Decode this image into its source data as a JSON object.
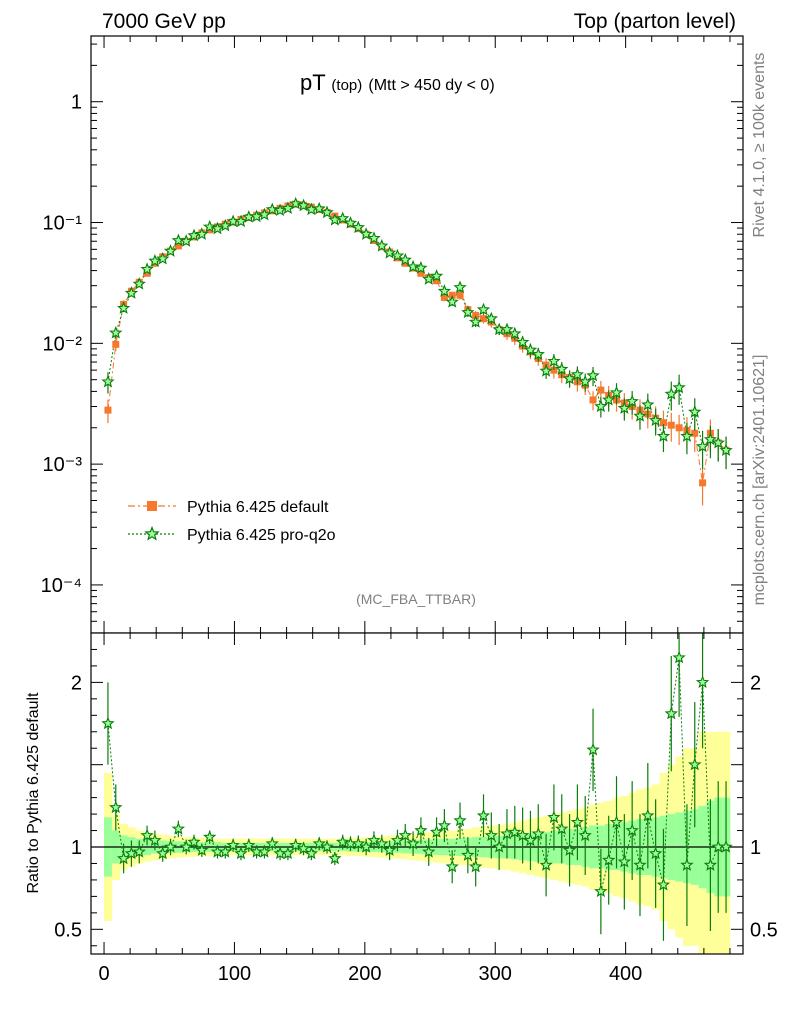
{
  "header": {
    "left": "7000 GeV pp",
    "right": "Top (parton level)"
  },
  "side_text": {
    "rivet": "Rivet 4.1.0, ≥ 100k events",
    "mcplots": "mcplots.cern.ch [arXiv:2401.10621]"
  },
  "analysis_tag": "(MC_FBA_TTBAR)",
  "colors": {
    "default": "#f5782d",
    "proq2o": "#0a7d0a",
    "band_inner": "#99ff99",
    "band_outer": "#ffff99"
  },
  "chart_data": [
    {
      "type": "scatter",
      "panel": "main",
      "title": "pT (top) (Mtt > 450 dy < 0)",
      "title_main": "pT",
      "title_small": "(top)",
      "title_rest": "(Mtt > 450 dy < 0)",
      "yscale": "log",
      "ylim": [
        4e-05,
        3.5
      ],
      "xlim": [
        -10,
        490
      ],
      "y_ticks": [
        {
          "value": 1,
          "label": "1"
        },
        {
          "value": 0.1,
          "label": "10⁻¹"
        },
        {
          "value": 0.01,
          "label": "10⁻²"
        },
        {
          "value": 0.001,
          "label": "10⁻³"
        },
        {
          "value": 0.0001,
          "label": "10⁻⁴"
        }
      ],
      "legend": {
        "position": "lower-left",
        "entries": [
          {
            "name": "Pythia 6.425 default",
            "marker": "square",
            "style": "dash-dot"
          },
          {
            "name": "Pythia 6.425 pro-q2o",
            "marker": "star",
            "style": "dotted"
          }
        ]
      },
      "series": [
        {
          "name": "Pythia 6.425 default",
          "x": [
            3,
            9,
            15,
            21,
            27,
            33,
            39,
            45,
            51,
            57,
            63,
            69,
            75,
            81,
            87,
            93,
            99,
            105,
            111,
            117,
            123,
            129,
            135,
            141,
            147,
            153,
            159,
            165,
            171,
            177,
            183,
            189,
            195,
            201,
            207,
            213,
            219,
            225,
            231,
            237,
            243,
            249,
            255,
            261,
            267,
            273,
            279,
            285,
            291,
            297,
            303,
            309,
            315,
            321,
            327,
            333,
            339,
            345,
            351,
            357,
            363,
            369,
            375,
            381,
            387,
            393,
            399,
            405,
            411,
            417,
            423,
            429,
            435,
            441,
            447,
            453,
            459,
            465,
            471,
            477
          ],
          "y": [
            0.0028,
            0.0098,
            0.021,
            0.027,
            0.032,
            0.038,
            0.046,
            0.052,
            0.058,
            0.064,
            0.07,
            0.076,
            0.082,
            0.087,
            0.092,
            0.097,
            0.101,
            0.106,
            0.11,
            0.115,
            0.12,
            0.125,
            0.131,
            0.137,
            0.142,
            0.139,
            0.134,
            0.128,
            0.121,
            0.113,
            0.105,
            0.097,
            0.089,
            0.08,
            0.071,
            0.063,
            0.057,
            0.051,
            0.046,
            0.042,
            0.038,
            0.035,
            0.033,
            0.024,
            0.025,
            0.025,
            0.019,
            0.017,
            0.016,
            0.015,
            0.013,
            0.012,
            0.011,
            0.0095,
            0.0085,
            0.0075,
            0.0066,
            0.006,
            0.0055,
            0.0052,
            0.0048,
            0.0045,
            0.0034,
            0.0041,
            0.0037,
            0.0034,
            0.0032,
            0.003,
            0.0028,
            0.0026,
            0.0024,
            0.0022,
            0.0021,
            0.002,
            0.0019,
            0.0018,
            0.0007,
            0.0018,
            0.0015,
            0.0013
          ],
          "yerr_rel": [
            0.22,
            0.12,
            0.08,
            0.07,
            0.06,
            0.05,
            0.05,
            0.04,
            0.04,
            0.04,
            0.035,
            0.035,
            0.035,
            0.03,
            0.03,
            0.03,
            0.03,
            0.03,
            0.03,
            0.03,
            0.03,
            0.03,
            0.03,
            0.03,
            0.03,
            0.03,
            0.03,
            0.03,
            0.03,
            0.03,
            0.035,
            0.035,
            0.035,
            0.04,
            0.04,
            0.04,
            0.045,
            0.05,
            0.05,
            0.055,
            0.06,
            0.06,
            0.065,
            0.07,
            0.07,
            0.08,
            0.08,
            0.09,
            0.09,
            0.1,
            0.1,
            0.11,
            0.12,
            0.12,
            0.13,
            0.13,
            0.14,
            0.15,
            0.15,
            0.16,
            0.17,
            0.17,
            0.18,
            0.19,
            0.2,
            0.2,
            0.21,
            0.22,
            0.23,
            0.24,
            0.25,
            0.26,
            0.27,
            0.28,
            0.29,
            0.3,
            0.35,
            0.3,
            0.3,
            0.3
          ]
        },
        {
          "name": "Pythia 6.425 pro-q2o",
          "x": [
            3,
            9,
            15,
            21,
            27,
            33,
            39,
            45,
            51,
            57,
            63,
            69,
            75,
            81,
            87,
            93,
            99,
            105,
            111,
            117,
            123,
            129,
            135,
            141,
            147,
            153,
            159,
            165,
            171,
            177,
            183,
            189,
            195,
            201,
            207,
            213,
            219,
            225,
            231,
            237,
            243,
            249,
            255,
            261,
            267,
            273,
            279,
            285,
            291,
            297,
            303,
            309,
            315,
            321,
            327,
            333,
            339,
            345,
            351,
            357,
            363,
            369,
            375,
            381,
            387,
            393,
            399,
            405,
            411,
            417,
            423,
            429,
            435,
            441,
            447,
            453,
            459,
            465,
            471,
            477
          ],
          "y": [
            0.0048,
            0.0122,
            0.0195,
            0.026,
            0.031,
            0.041,
            0.048,
            0.05,
            0.058,
            0.071,
            0.07,
            0.078,
            0.08,
            0.092,
            0.089,
            0.094,
            0.102,
            0.102,
            0.111,
            0.112,
            0.116,
            0.128,
            0.126,
            0.131,
            0.143,
            0.138,
            0.128,
            0.13,
            0.121,
            0.105,
            0.108,
            0.099,
            0.091,
            0.08,
            0.074,
            0.064,
            0.056,
            0.053,
            0.049,
            0.043,
            0.042,
            0.034,
            0.036,
            0.027,
            0.022,
            0.029,
            0.018,
            0.015,
            0.019,
            0.016,
            0.013,
            0.013,
            0.012,
            0.0102,
            0.0088,
            0.0081,
            0.0059,
            0.0071,
            0.0061,
            0.0051,
            0.0055,
            0.0048,
            0.0054,
            0.003,
            0.0034,
            0.0039,
            0.0029,
            0.0033,
            0.0025,
            0.0031,
            0.0023,
            0.0017,
            0.0038,
            0.0043,
            0.0017,
            0.0027,
            0.0014,
            0.0016,
            0.0015,
            0.0013
          ],
          "yerr_rel": [
            0.2,
            0.1,
            0.07,
            0.06,
            0.05,
            0.05,
            0.045,
            0.04,
            0.04,
            0.035,
            0.035,
            0.03,
            0.03,
            0.03,
            0.03,
            0.03,
            0.03,
            0.03,
            0.03,
            0.03,
            0.03,
            0.03,
            0.03,
            0.03,
            0.03,
            0.03,
            0.03,
            0.03,
            0.03,
            0.03,
            0.035,
            0.035,
            0.035,
            0.04,
            0.04,
            0.04,
            0.045,
            0.05,
            0.05,
            0.055,
            0.06,
            0.06,
            0.065,
            0.07,
            0.07,
            0.08,
            0.08,
            0.09,
            0.09,
            0.1,
            0.1,
            0.11,
            0.12,
            0.12,
            0.13,
            0.13,
            0.14,
            0.15,
            0.15,
            0.16,
            0.17,
            0.17,
            0.18,
            0.19,
            0.2,
            0.2,
            0.21,
            0.22,
            0.23,
            0.24,
            0.25,
            0.26,
            0.27,
            0.28,
            0.29,
            0.3,
            0.35,
            0.3,
            0.3,
            0.3
          ]
        }
      ]
    },
    {
      "type": "line",
      "panel": "ratio",
      "ylabel": "Ratio to Pythia 6.425 default",
      "ylim": [
        0.35,
        2.3
      ],
      "xlim": [
        -10,
        490
      ],
      "y_ticks": [
        {
          "value": 0.5,
          "label": "0.5"
        },
        {
          "value": 1,
          "label": "1"
        },
        {
          "value": 2,
          "label": "2"
        }
      ],
      "x_ticks": [
        {
          "value": 0,
          "label": "0"
        },
        {
          "value": 100,
          "label": "100"
        },
        {
          "value": 200,
          "label": "200"
        },
        {
          "value": 300,
          "label": "300"
        },
        {
          "value": 400,
          "label": "400"
        }
      ],
      "reference_line": 1,
      "band_inner_halfwidth": [
        0.18,
        0.1,
        0.07,
        0.06,
        0.05,
        0.05,
        0.04,
        0.04,
        0.035,
        0.035,
        0.03,
        0.03,
        0.03,
        0.03,
        0.03,
        0.025,
        0.025,
        0.025,
        0.025,
        0.025,
        0.025,
        0.025,
        0.025,
        0.025,
        0.025,
        0.025,
        0.025,
        0.025,
        0.025,
        0.025,
        0.025,
        0.028,
        0.028,
        0.03,
        0.03,
        0.032,
        0.035,
        0.035,
        0.038,
        0.04,
        0.042,
        0.045,
        0.048,
        0.05,
        0.05,
        0.055,
        0.055,
        0.06,
        0.062,
        0.065,
        0.068,
        0.07,
        0.075,
        0.08,
        0.085,
        0.09,
        0.09,
        0.1,
        0.1,
        0.11,
        0.11,
        0.12,
        0.13,
        0.13,
        0.14,
        0.14,
        0.15,
        0.16,
        0.17,
        0.17,
        0.18,
        0.19,
        0.2,
        0.21,
        0.22,
        0.23,
        0.25,
        0.28,
        0.3,
        0.3
      ],
      "band_outer_halfwidth": [
        0.45,
        0.2,
        0.14,
        0.12,
        0.1,
        0.09,
        0.08,
        0.075,
        0.07,
        0.065,
        0.06,
        0.06,
        0.055,
        0.055,
        0.05,
        0.05,
        0.05,
        0.05,
        0.05,
        0.05,
        0.05,
        0.05,
        0.05,
        0.05,
        0.05,
        0.05,
        0.05,
        0.05,
        0.05,
        0.05,
        0.05,
        0.055,
        0.055,
        0.06,
        0.06,
        0.065,
        0.07,
        0.07,
        0.075,
        0.08,
        0.085,
        0.09,
        0.095,
        0.1,
        0.1,
        0.11,
        0.11,
        0.12,
        0.125,
        0.13,
        0.135,
        0.14,
        0.15,
        0.16,
        0.17,
        0.18,
        0.19,
        0.2,
        0.21,
        0.22,
        0.23,
        0.24,
        0.26,
        0.27,
        0.28,
        0.3,
        0.31,
        0.33,
        0.35,
        0.36,
        0.38,
        0.45,
        0.5,
        0.55,
        0.6,
        0.6,
        0.7,
        0.7,
        0.7,
        0.7
      ],
      "ratio": [
        1.75,
        1.24,
        0.93,
        0.96,
        0.97,
        1.07,
        1.04,
        0.96,
        1.0,
        1.11,
        1.0,
        1.03,
        0.98,
        1.06,
        0.97,
        0.97,
        1.01,
        0.96,
        1.01,
        0.97,
        0.97,
        1.02,
        0.96,
        0.96,
        1.01,
        0.99,
        0.96,
        1.02,
        1.0,
        0.93,
        1.03,
        1.02,
        1.02,
        1.0,
        1.04,
        1.02,
        0.98,
        1.04,
        1.07,
        1.02,
        1.1,
        0.97,
        1.09,
        1.13,
        0.88,
        1.16,
        0.95,
        0.88,
        1.19,
        1.07,
        1.0,
        1.08,
        1.09,
        1.07,
        1.04,
        1.08,
        0.89,
        1.18,
        1.11,
        0.98,
        1.15,
        1.07,
        1.59,
        0.73,
        0.92,
        1.15,
        0.91,
        1.1,
        0.89,
        1.19,
        0.96,
        0.77,
        1.81,
        2.15,
        0.89,
        1.5,
        2.0,
        0.89,
        1.0,
        1.0
      ],
      "ratio_err": [
        0.25,
        0.14,
        0.09,
        0.08,
        0.07,
        0.06,
        0.06,
        0.05,
        0.05,
        0.05,
        0.045,
        0.045,
        0.04,
        0.04,
        0.04,
        0.04,
        0.04,
        0.04,
        0.04,
        0.04,
        0.04,
        0.04,
        0.04,
        0.04,
        0.04,
        0.04,
        0.04,
        0.04,
        0.04,
        0.04,
        0.045,
        0.045,
        0.05,
        0.05,
        0.055,
        0.055,
        0.06,
        0.065,
        0.07,
        0.075,
        0.08,
        0.085,
        0.09,
        0.1,
        0.1,
        0.11,
        0.11,
        0.12,
        0.13,
        0.14,
        0.14,
        0.15,
        0.16,
        0.17,
        0.18,
        0.18,
        0.19,
        0.2,
        0.21,
        0.22,
        0.23,
        0.24,
        0.25,
        0.26,
        0.27,
        0.28,
        0.29,
        0.3,
        0.31,
        0.32,
        0.33,
        0.34,
        0.35,
        0.36,
        0.37,
        0.38,
        0.4,
        0.4,
        0.4,
        0.4
      ]
    }
  ]
}
